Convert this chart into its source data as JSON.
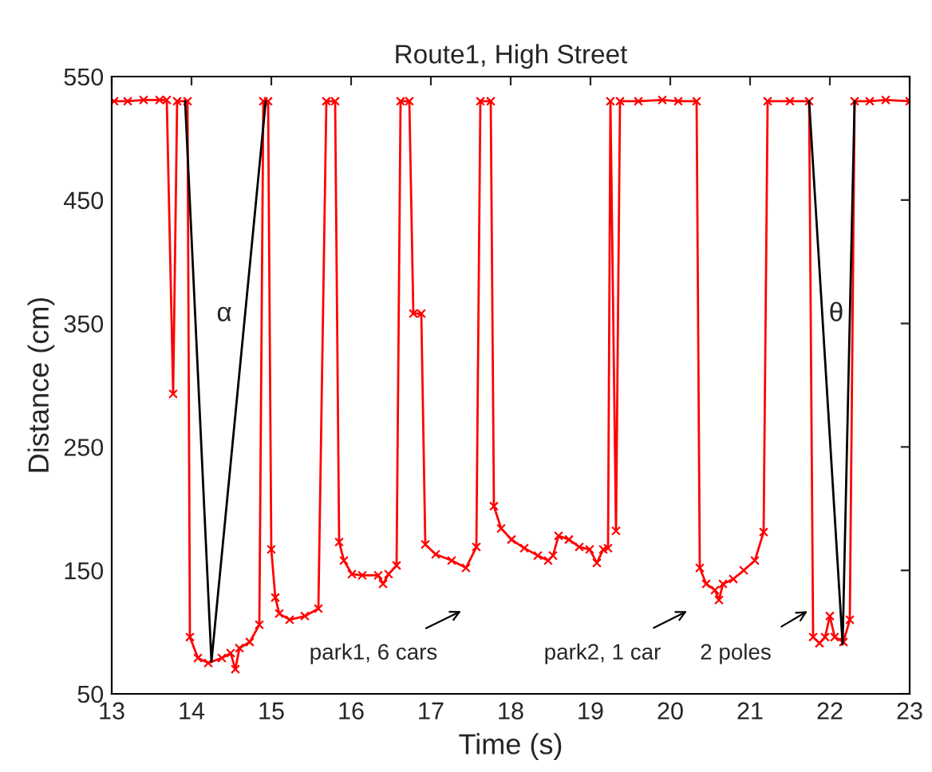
{
  "chart_data": {
    "type": "line",
    "title": "Route1, High Street",
    "xlabel": "Time (s)",
    "ylabel": "Distance (cm)",
    "xlim": [
      13,
      23
    ],
    "xticks": [
      13,
      14,
      15,
      16,
      17,
      18,
      19,
      20,
      21,
      22,
      23
    ],
    "ylim": [
      50,
      550
    ],
    "yticks": [
      50,
      150,
      250,
      350,
      450,
      550
    ],
    "grid": false,
    "legend": false,
    "series": [
      {
        "color": "#ff0000",
        "marker": "cross",
        "line_style": "solid",
        "x": [
          13.03,
          13.2,
          13.4,
          13.6,
          13.69,
          13.77,
          13.82,
          13.95,
          13.98,
          14.08,
          14.21,
          14.38,
          14.49,
          14.55,
          14.6,
          14.73,
          14.85,
          14.9,
          14.96,
          15.0,
          15.05,
          15.1,
          15.23,
          15.42,
          15.59,
          15.69,
          15.8,
          15.85,
          15.91,
          16.01,
          16.14,
          16.34,
          16.4,
          16.47,
          16.57,
          16.62,
          16.73,
          16.78,
          16.88,
          16.93,
          17.06,
          17.26,
          17.44,
          17.57,
          17.62,
          17.75,
          17.79,
          17.88,
          18.01,
          18.17,
          18.34,
          18.47,
          18.53,
          18.6,
          18.73,
          18.86,
          18.99,
          19.08,
          19.16,
          19.22,
          19.25,
          19.32,
          19.37,
          19.6,
          19.9,
          20.1,
          20.33,
          20.37,
          20.45,
          20.56,
          20.61,
          20.66,
          20.79,
          20.92,
          21.06,
          21.17,
          21.22,
          21.5,
          21.74,
          21.79,
          21.87,
          21.94,
          22.0,
          22.06,
          22.17,
          22.25,
          22.31,
          22.5,
          22.7,
          23.0
        ],
        "values": [
          530,
          530,
          531,
          531,
          531,
          293,
          530,
          530,
          96,
          79,
          75,
          79,
          83,
          70,
          87,
          92,
          106,
          530,
          530,
          167,
          128,
          115,
          110,
          113,
          119,
          530,
          530,
          173,
          158,
          147,
          146,
          146,
          139,
          147,
          154,
          530,
          530,
          358,
          358,
          171,
          163,
          158,
          152,
          169,
          530,
          530,
          202,
          184,
          175,
          168,
          162,
          158,
          162,
          178,
          175,
          169,
          167,
          156,
          167,
          168,
          530,
          182,
          530,
          530,
          531,
          530,
          530,
          152,
          139,
          134,
          126,
          139,
          143,
          150,
          158,
          181,
          530,
          530,
          530,
          96,
          91,
          96,
          113,
          96,
          92,
          110,
          530,
          530,
          531,
          530
        ]
      },
      {
        "color": "#000000",
        "marker": "none",
        "line_style": "solid",
        "x": [
          13.92,
          14.25,
          14.93
        ],
        "values": [
          530,
          76,
          530
        ]
      },
      {
        "color": "#000000",
        "marker": "none",
        "line_style": "solid",
        "x": [
          21.74,
          22.16,
          22.31
        ],
        "values": [
          530,
          90,
          530
        ]
      }
    ],
    "annotations": [
      "α",
      "θ",
      "park1, 6 cars",
      "park2, 1 car",
      "2 poles"
    ]
  }
}
